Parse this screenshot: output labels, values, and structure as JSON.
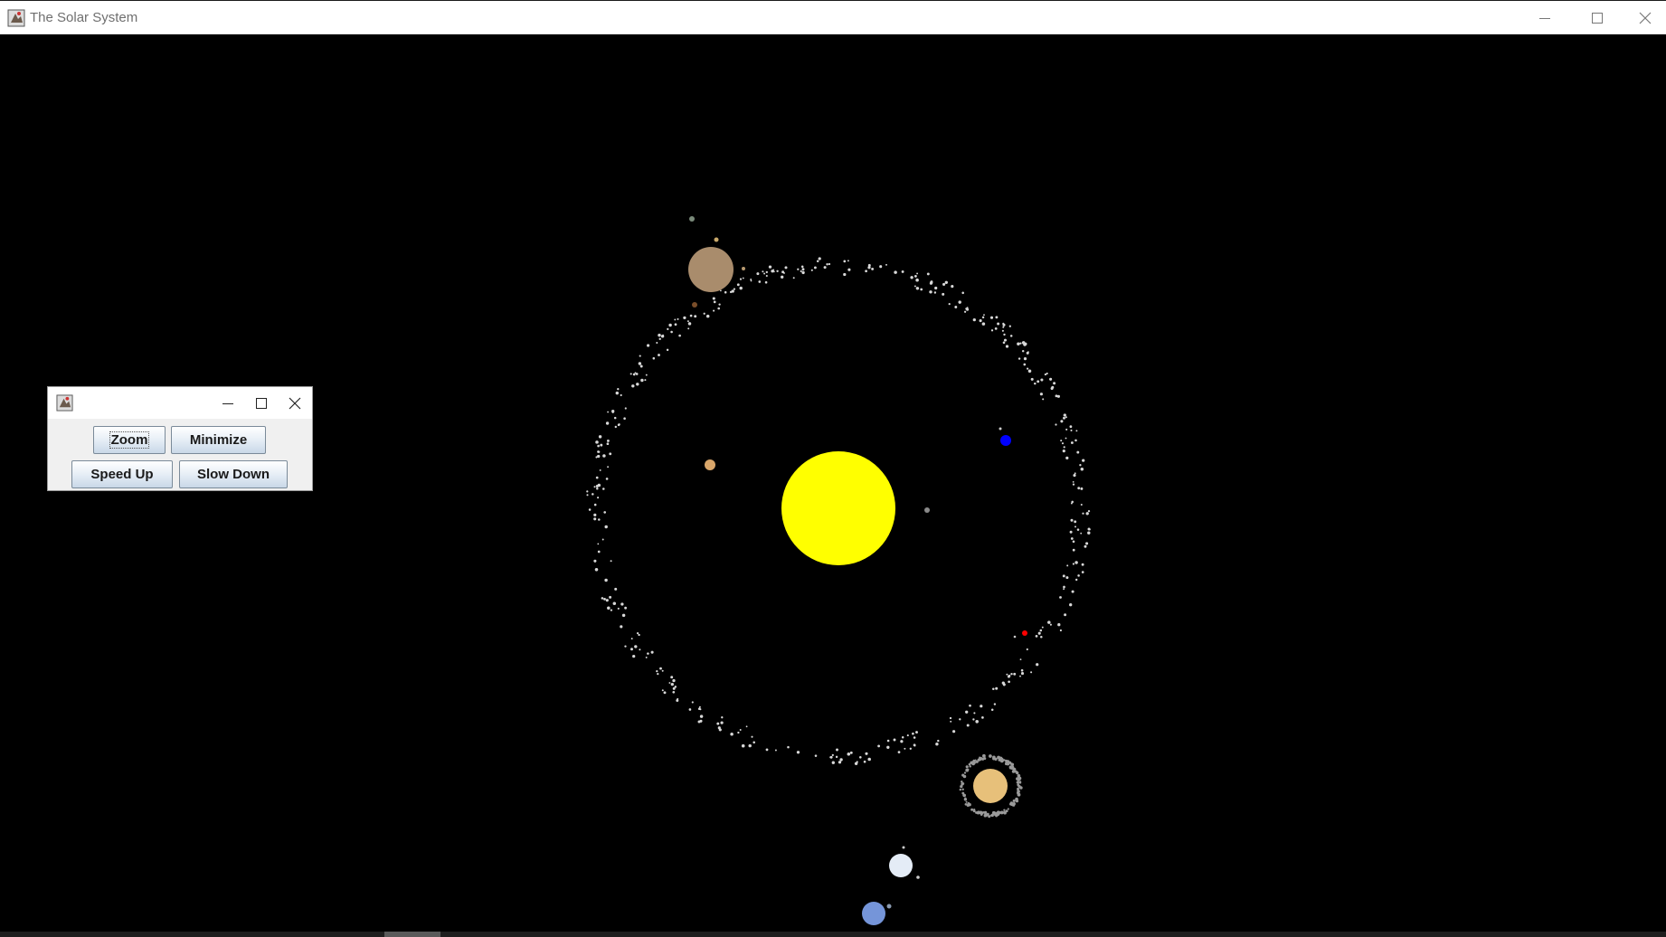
{
  "window": {
    "title": "The Solar System",
    "icon": "java-app-icon",
    "controls": [
      "minimize-icon",
      "maximize-icon",
      "close-icon"
    ]
  },
  "control_panel": {
    "icon": "java-app-icon",
    "controls": [
      "minimize-icon",
      "maximize-icon",
      "close-icon"
    ],
    "buttons": {
      "zoom": "Zoom",
      "minimize": "Minimize",
      "speed_up": "Speed Up",
      "slow_down": "Slow Down"
    }
  },
  "colors": {
    "background": "#000000",
    "sun": "#ffff00",
    "asteroids": "#d8d8d8",
    "planet_blue": "#0000ff",
    "planet_red": "#ff0000",
    "jupiter": "#a98c6c",
    "saturn": "#e7c07a",
    "uranus": "#e4ecf6",
    "neptune": "#7595d9",
    "venus": "#d9a66a",
    "mercury": "#8a8a8a"
  }
}
